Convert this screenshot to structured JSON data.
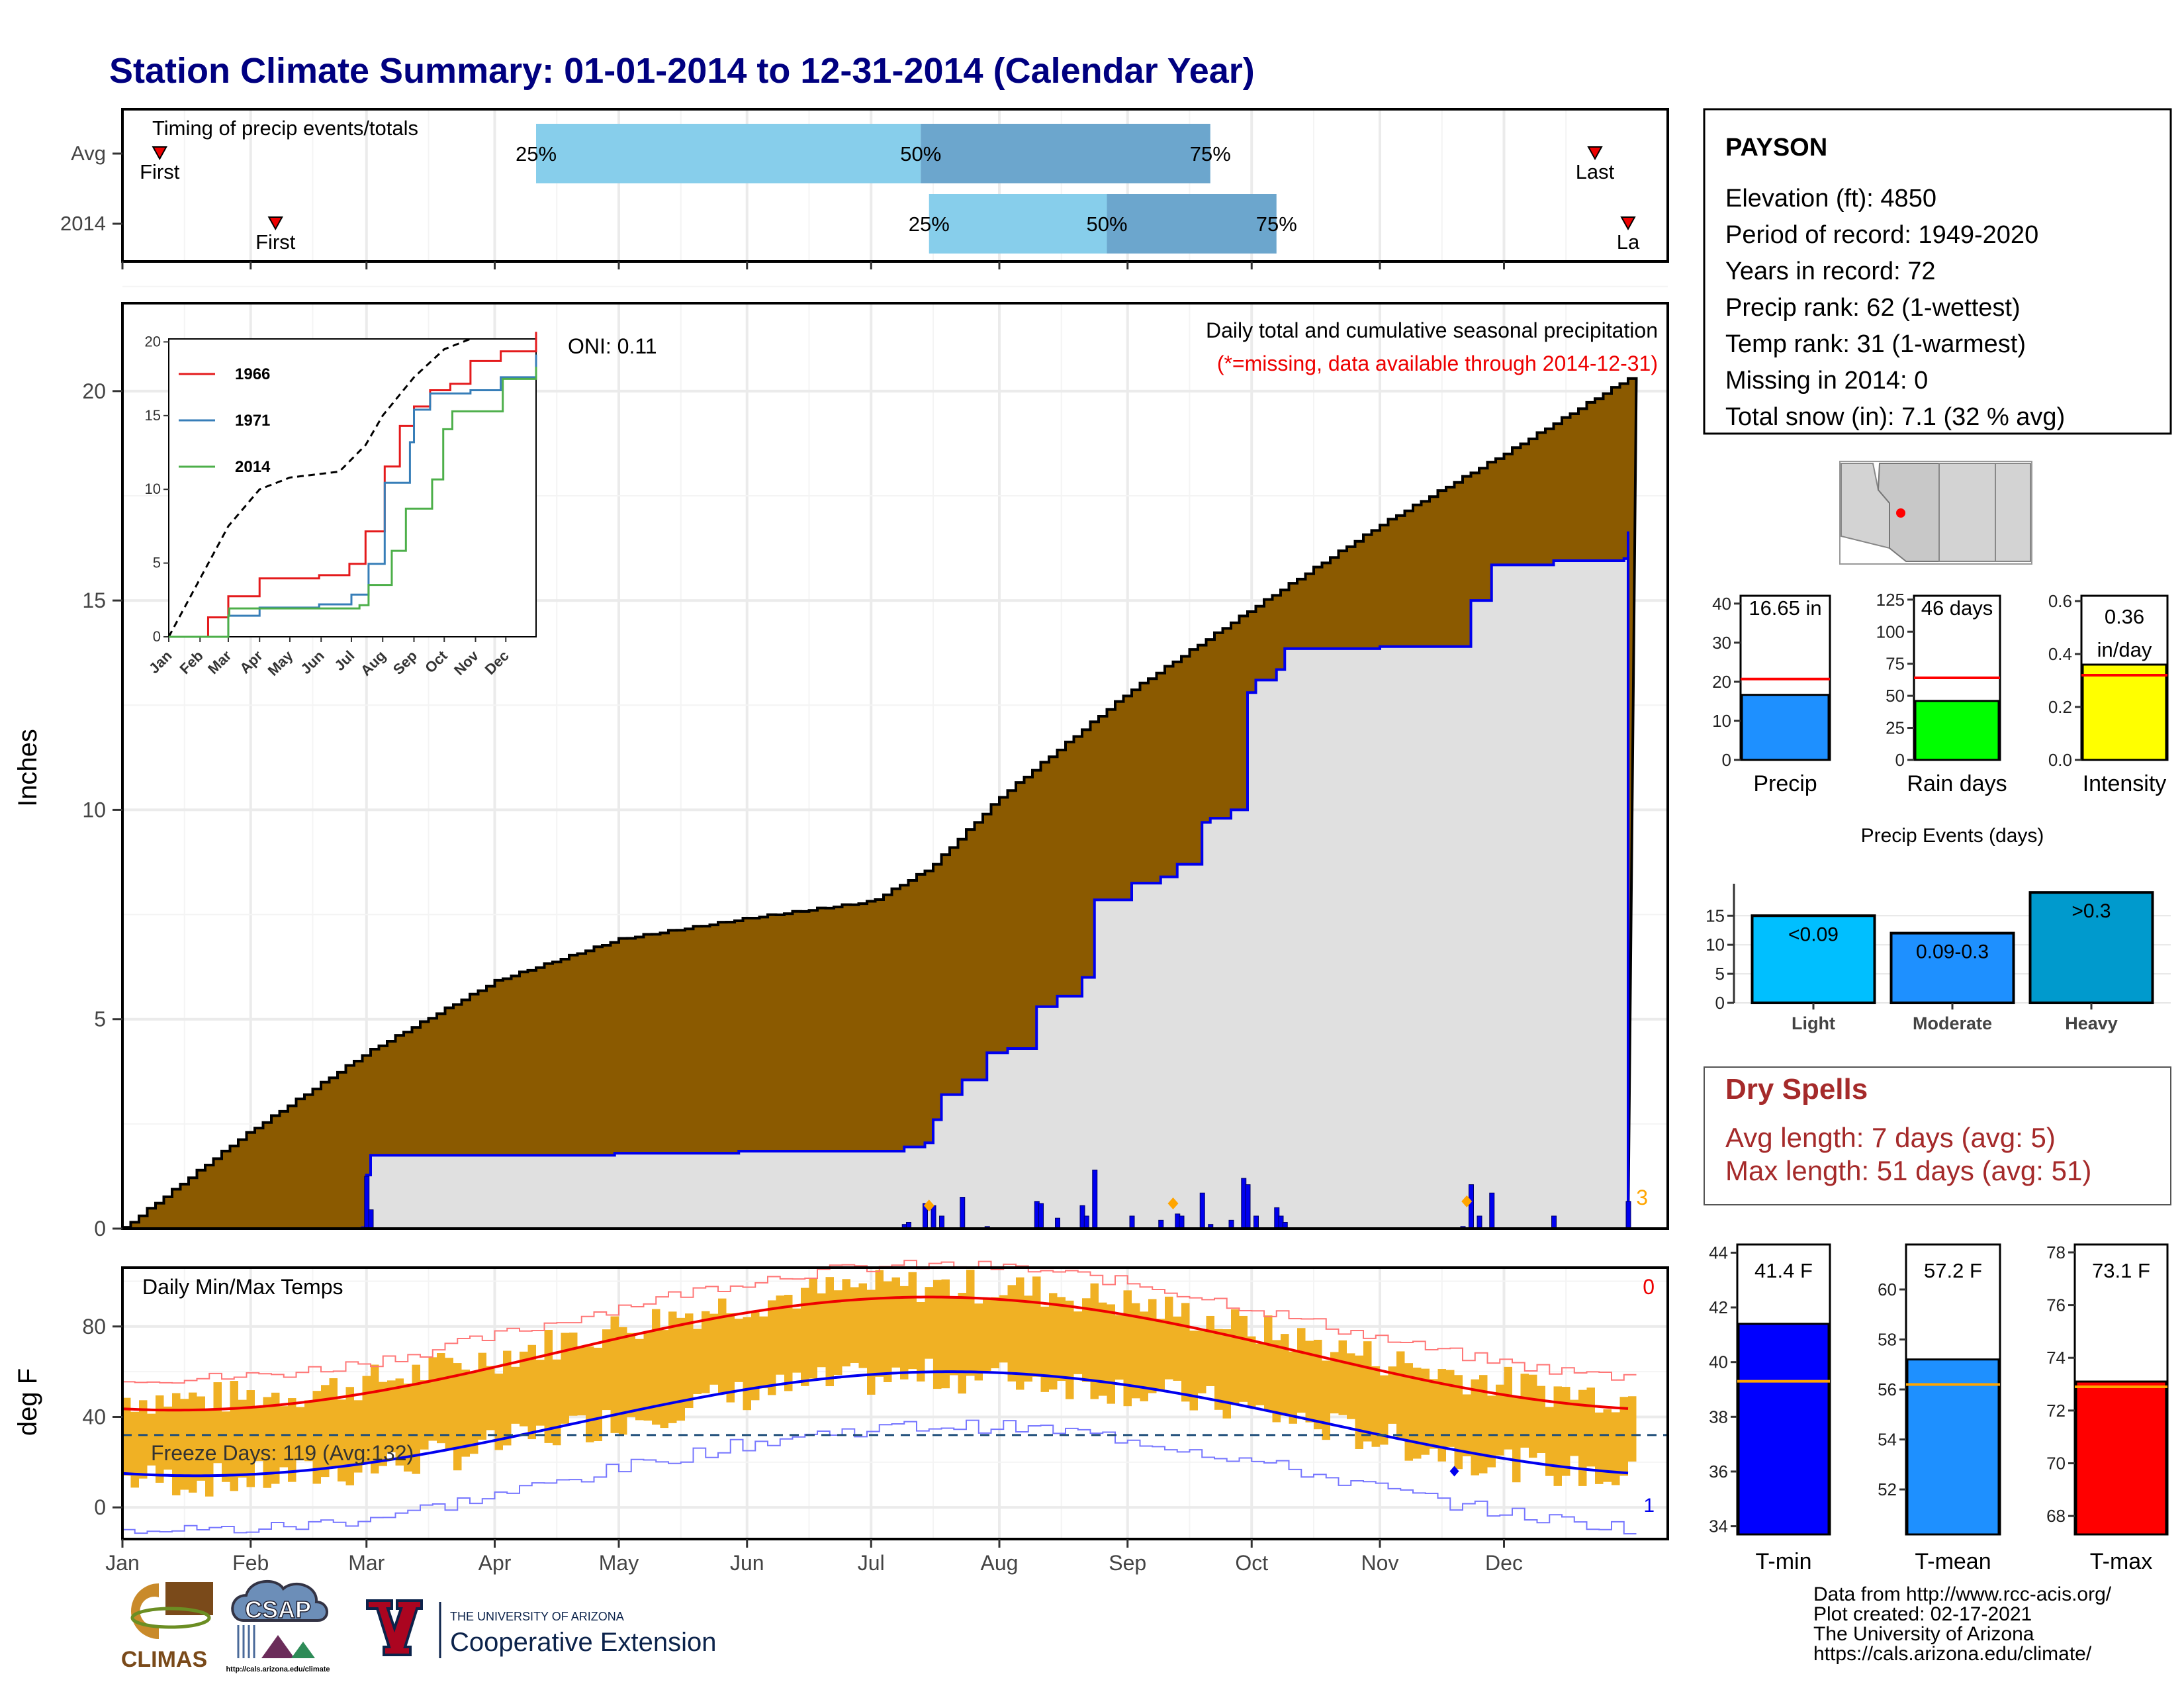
{
  "title": "Station Climate Summary: 01-01-2014 to 12-31-2014 (Calendar Year)",
  "colors": {
    "title": "#000080",
    "brown": "#8B5A00",
    "avg_fill": "#E0E0E0",
    "blue_line": "#0000EE",
    "red_line": "#EE0000",
    "bars": "#F0B124",
    "dark_red": "#A52A2A",
    "light_blue": "#87CEEB",
    "mid_blue": "#6CA6CD"
  },
  "months": [
    "Jan",
    "Feb",
    "Mar",
    "Apr",
    "May",
    "Jun",
    "Jul",
    "Aug",
    "Sep",
    "Oct",
    "Nov",
    "Dec"
  ],
  "timing_panel": {
    "label": "Timing of precip events/totals",
    "rows": [
      {
        "name": "Avg",
        "first_doy": 10,
        "last_doy": 357,
        "q25_doy": 101,
        "q50_doy": 194,
        "q75_doy": 264,
        "first_label": "First",
        "last_label": "Last",
        "q25_label": "25%",
        "q50_label": "50%",
        "q75_label": "75%"
      },
      {
        "name": "2014",
        "first_doy": 38,
        "last_doy": 365,
        "q25_doy": 196,
        "q50_doy": 239,
        "q75_doy": 280,
        "first_label": "First",
        "last_label": "La",
        "q25_label": "25%",
        "q50_label": "50%",
        "q75_label": "75%"
      }
    ]
  },
  "precip_panel": {
    "ylabel": "Inches",
    "yticks": [
      0,
      5,
      10,
      15,
      20
    ],
    "ylim": [
      0,
      22.1
    ],
    "caption1": "Daily total and cumulative seasonal precipitation",
    "caption2": "(*=missing, data available through 2014-12-31)",
    "missing_count": "3",
    "oni": "ONI: 0.11"
  },
  "inset": {
    "yticks": [
      0,
      5,
      10,
      15,
      20
    ],
    "month_labels": [
      "Jan",
      "Feb",
      "Mar",
      "Apr",
      "May",
      "Jun",
      "Jul",
      "Aug",
      "Sep",
      "Oct",
      "Nov",
      "Dec"
    ],
    "legend": [
      {
        "name": "1966",
        "color": "#E41A1C"
      },
      {
        "name": "1971",
        "color": "#377EB8"
      },
      {
        "name": "2014",
        "color": "#4DAF4A"
      }
    ]
  },
  "temp_panel": {
    "ylabel": "deg F",
    "yticks": [
      0,
      40,
      80
    ],
    "ylim": [
      -14,
      106
    ],
    "label": "Daily Min/Max Temps",
    "missing_count": "0",
    "freeze": "Freeze Days: 119 (Avg:132)",
    "freeze_line": 32,
    "bottom_count": "1"
  },
  "station_box": {
    "name": "PAYSON",
    "lines": [
      "Elevation (ft): 4850",
      "Period of record: 1949-2020",
      "Years in record: 72",
      "Precip rank: 62 (1-wettest)",
      "Temp rank: 31 (1-warmest)",
      "Missing in 2014: 0",
      "Total snow (in): 7.1 (32 % avg)"
    ]
  },
  "gauges": [
    {
      "label": "Precip",
      "value": 16.65,
      "avg": 20.7,
      "text": "16.65 in",
      "ticks": [
        0,
        10,
        20,
        30,
        40
      ],
      "ymin": 0,
      "ymax": 42,
      "color": "#1E90FF"
    },
    {
      "label": "Rain days",
      "value": 46,
      "avg": 64,
      "text": "46 days",
      "ticks": [
        0,
        25,
        50,
        75,
        100,
        125
      ],
      "ymin": 0,
      "ymax": 128,
      "color": "#00FF00"
    },
    {
      "label": "Intensity",
      "value": 0.36,
      "avg": 0.32,
      "text": "0.36",
      "text2": "in/day",
      "ticks": [
        "0.0",
        "0.2",
        "0.4",
        "0.6"
      ],
      "ymin": 0,
      "ymax": 0.62,
      "color": "#FFFF00"
    }
  ],
  "events_chart": {
    "title": "Precip Events (days)",
    "yticks": [
      0,
      5,
      10,
      15
    ],
    "ymax": 20.5,
    "categories": [
      "Light",
      "Moderate",
      "Heavy"
    ],
    "values": [
      15,
      12,
      19
    ],
    "bar_labels": [
      "<0.09",
      "0.09-0.3",
      ">0.3"
    ],
    "colors": [
      "#00BFFF",
      "#1E90FF",
      "#009ACD"
    ]
  },
  "dry_spells": {
    "title": "Dry Spells",
    "line1": "Avg length: 7 days (avg: 5)",
    "line2": "Max length: 51 days (avg: 51)"
  },
  "temp_gauges": [
    {
      "label": "T-min",
      "value": 41.4,
      "avg": 39.3,
      "text": "41.4 F",
      "ticks": [
        34,
        36,
        38,
        40,
        42,
        44
      ],
      "ymin": 33.7,
      "ymax": 44.3,
      "color": "#0000FF"
    },
    {
      "label": "T-mean",
      "value": 57.2,
      "avg": 56.2,
      "text": "57.2 F",
      "ticks": [
        52,
        54,
        56,
        58,
        60
      ],
      "ymin": 50.2,
      "ymax": 61.8,
      "color": "#1E90FF"
    },
    {
      "label": "T-max",
      "value": 73.1,
      "avg": 72.9,
      "text": "73.1 F",
      "ticks": [
        68,
        70,
        72,
        74,
        76,
        78
      ],
      "ymin": 67.3,
      "ymax": 78.3,
      "color": "#FF0000"
    }
  ],
  "credits": {
    "lines": [
      "Data from http://www.rcc-acis.org/",
      "Plot created: 02-17-2021",
      "The University of Arizona",
      "https://cals.arizona.edu/climate/"
    ],
    "logo_climas": "CLIMAS",
    "logo_csap": "CSAP",
    "logo_csap_url": "http://cals.arizona.edu/climate",
    "ua_small": "THE UNIVERSITY OF ARIZONA",
    "ua_big": "Cooperative Extension"
  }
}
